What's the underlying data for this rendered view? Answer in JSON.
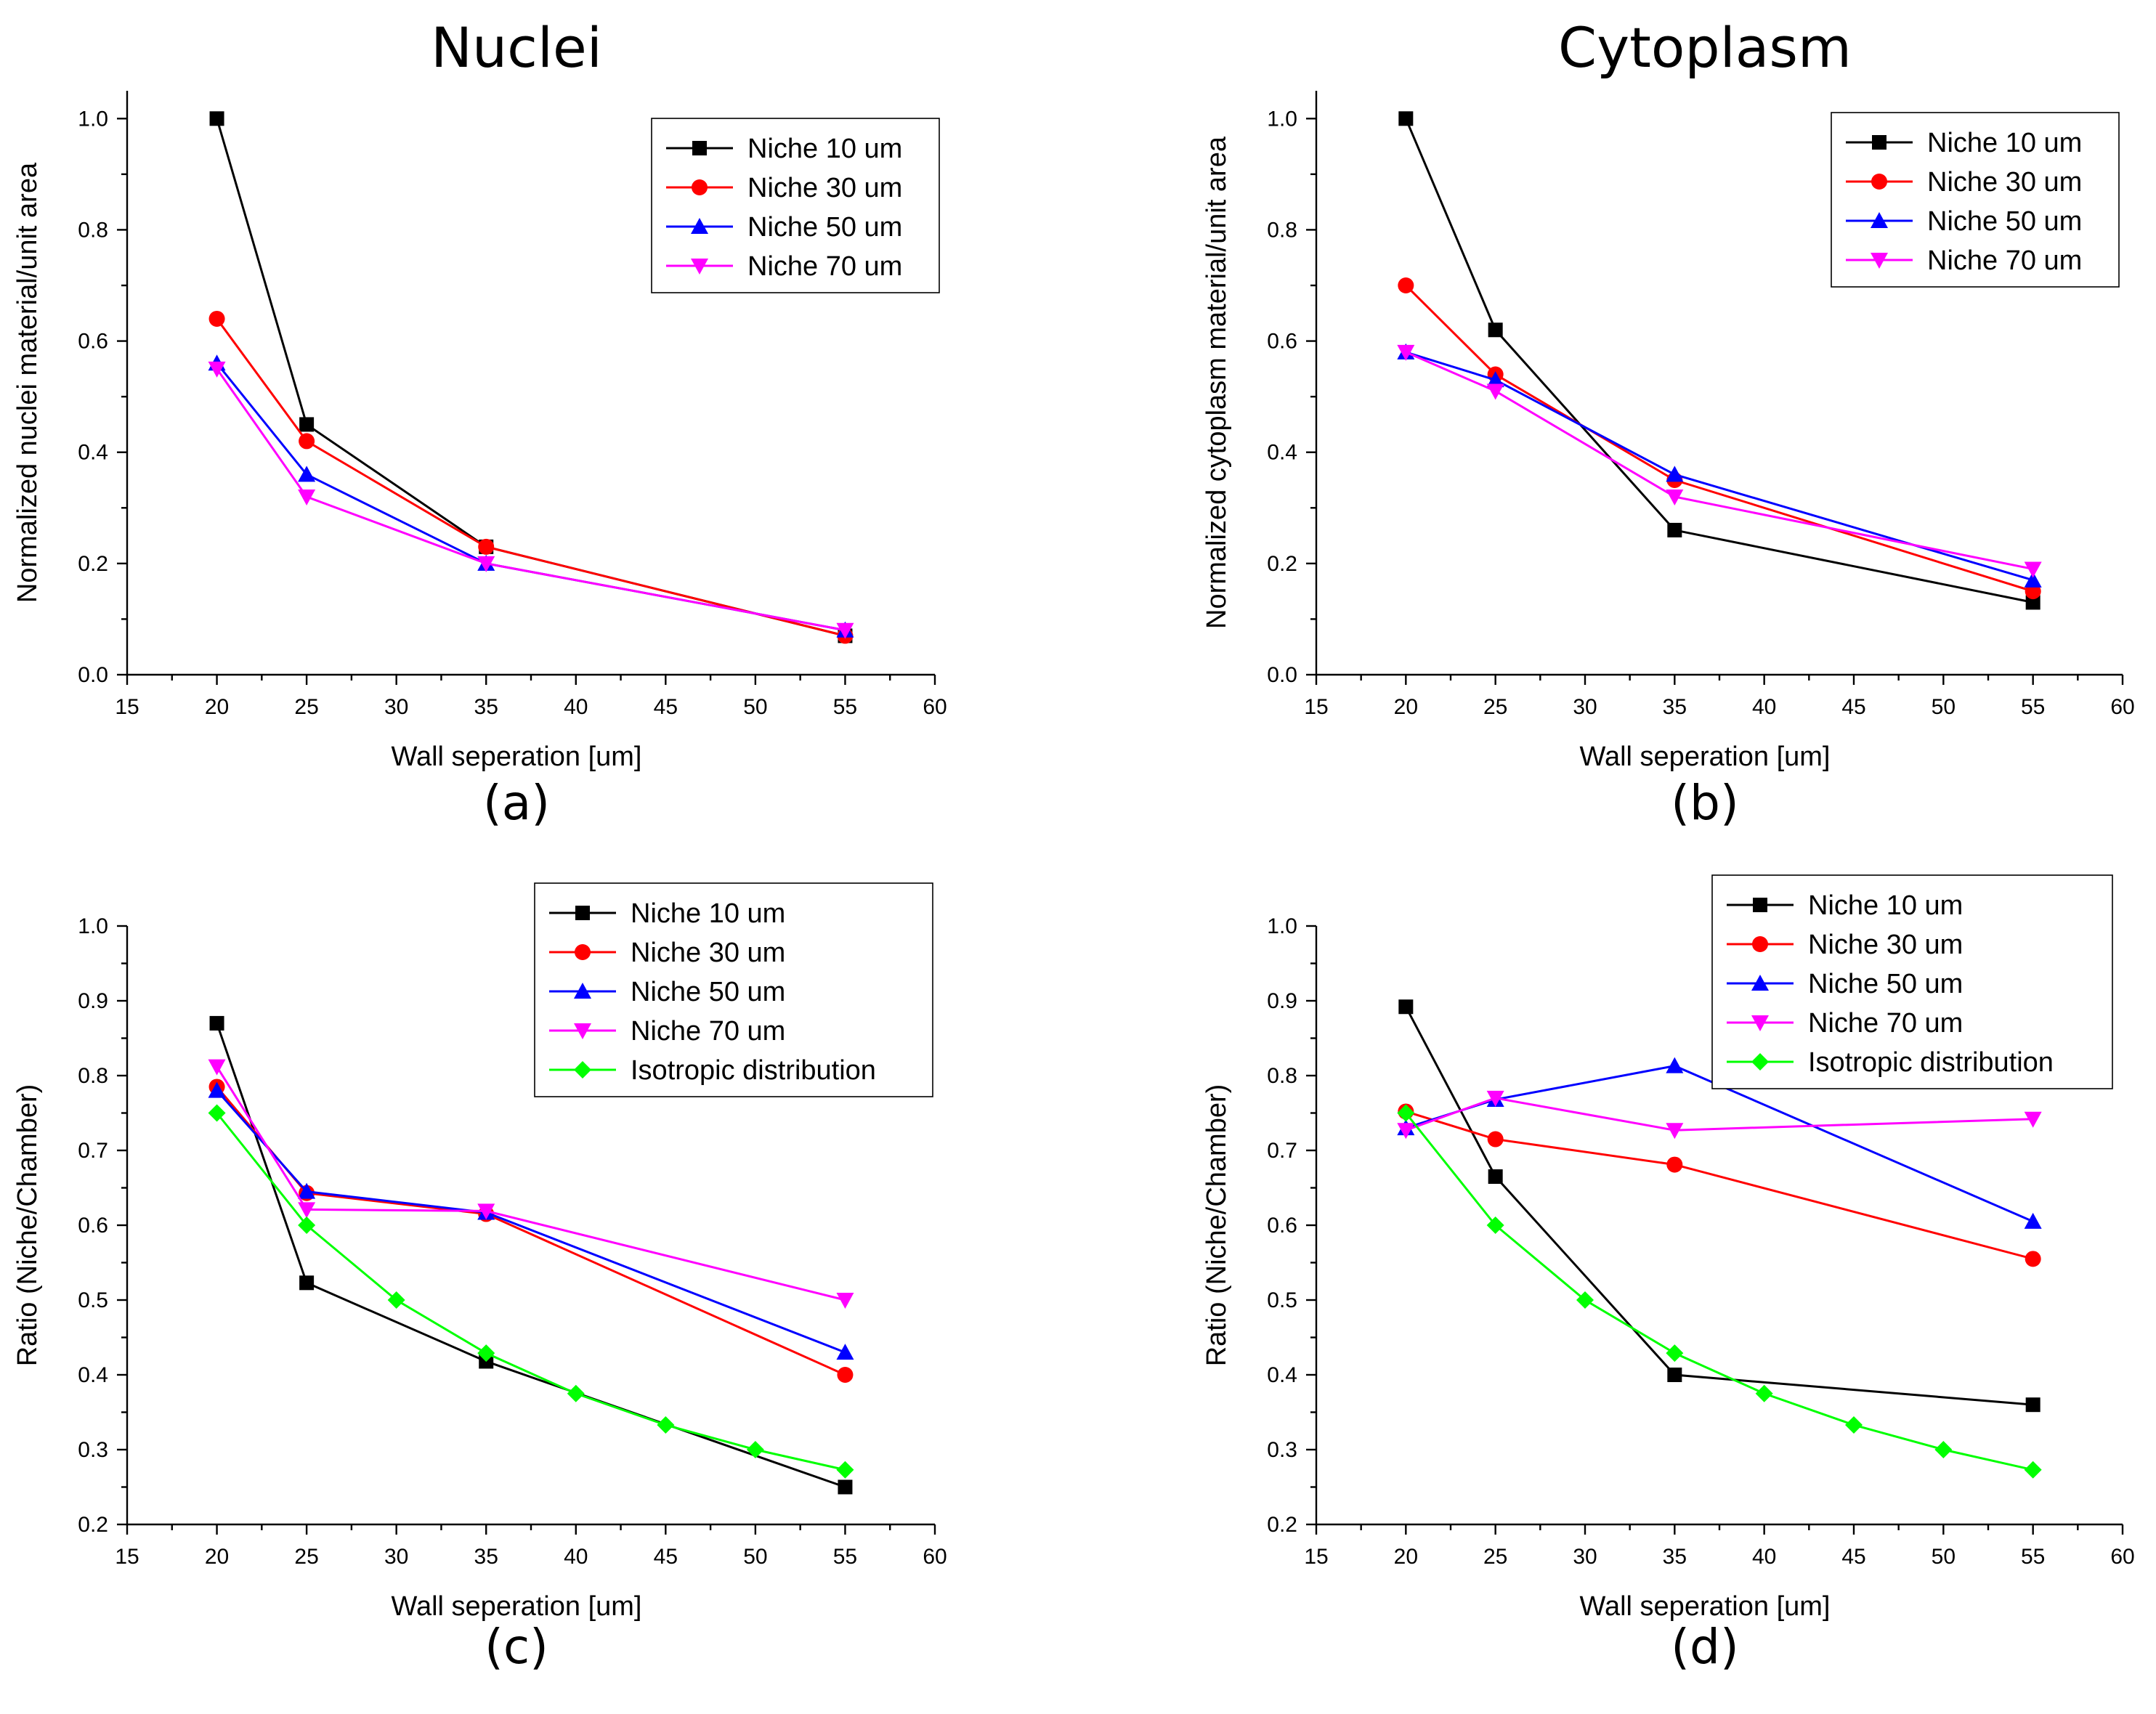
{
  "colors": {
    "Niche 10 um": "#000000",
    "Niche 30 um": "#ff0000",
    "Niche 50 um": "#0000ff",
    "Niche 70 um": "#ff00ff",
    "Isotropic distribution": "#00ff00"
  },
  "markers": {
    "Niche 10 um": "square",
    "Niche 30 um": "circle",
    "Niche 50 um": "triangle-up",
    "Niche 70 um": "triangle-down",
    "Isotropic distribution": "diamond"
  },
  "chart_data": [
    {
      "type": "line",
      "title": "Nuclei",
      "panel_label": "(a)",
      "xlabel": "Wall seperation [um]",
      "ylabel": "Normalized nuclei material/unit area",
      "xlim": [
        15,
        60
      ],
      "ylim": [
        0,
        1.05
      ],
      "xticks": [
        15,
        20,
        25,
        30,
        35,
        40,
        45,
        50,
        55,
        60
      ],
      "xtick_labels": [
        "15",
        "20",
        "25",
        "30",
        "35",
        "40",
        "45",
        "50",
        "55",
        "60"
      ],
      "yticks": [
        0,
        0.2,
        0.4,
        0.6,
        0.8,
        1.0
      ],
      "ytick_labels": [
        "0.0",
        "0.2",
        "0.4",
        "0.6",
        "0.8",
        "1.0"
      ],
      "legend_position": "top-right",
      "series": [
        {
          "name": "Niche 10 um",
          "x": [
            20,
            25,
            35,
            55
          ],
          "values": [
            1.0,
            0.45,
            0.23,
            0.07
          ]
        },
        {
          "name": "Niche 30 um",
          "x": [
            20,
            25,
            35,
            55
          ],
          "values": [
            0.64,
            0.42,
            0.23,
            0.07
          ]
        },
        {
          "name": "Niche 50 um",
          "x": [
            20,
            25,
            35,
            55
          ],
          "values": [
            0.56,
            0.36,
            0.2,
            0.08
          ]
        },
        {
          "name": "Niche 70 um",
          "x": [
            20,
            25,
            35,
            55
          ],
          "values": [
            0.55,
            0.32,
            0.2,
            0.08
          ]
        }
      ]
    },
    {
      "type": "line",
      "title": "Cytoplasm",
      "panel_label": "(b)",
      "xlabel": "Wall seperation [um]",
      "ylabel": "Normalized cytoplasm material/unit area",
      "xlim": [
        15,
        60
      ],
      "ylim": [
        0,
        1.05
      ],
      "xticks": [
        15,
        20,
        25,
        30,
        35,
        40,
        45,
        50,
        55,
        60
      ],
      "xtick_labels": [
        "15",
        "20",
        "25",
        "30",
        "35",
        "40",
        "45",
        "50",
        "55",
        "60"
      ],
      "yticks": [
        0,
        0.2,
        0.4,
        0.6,
        0.8,
        1.0
      ],
      "ytick_labels": [
        "0.0",
        "0.2",
        "0.4",
        "0.6",
        "0.8",
        "1.0"
      ],
      "legend_position": "top-right",
      "series": [
        {
          "name": "Niche 10 um",
          "x": [
            20,
            25,
            35,
            55
          ],
          "values": [
            1.0,
            0.62,
            0.26,
            0.13
          ]
        },
        {
          "name": "Niche 30 um",
          "x": [
            20,
            25,
            35,
            55
          ],
          "values": [
            0.7,
            0.54,
            0.35,
            0.15
          ]
        },
        {
          "name": "Niche 50 um",
          "x": [
            20,
            25,
            35,
            55
          ],
          "values": [
            0.58,
            0.53,
            0.36,
            0.17
          ]
        },
        {
          "name": "Niche 70 um",
          "x": [
            20,
            25,
            35,
            55
          ],
          "values": [
            0.58,
            0.51,
            0.32,
            0.19
          ]
        }
      ]
    },
    {
      "type": "line",
      "title": "",
      "panel_label": "(c)",
      "xlabel": "Wall seperation [um]",
      "ylabel": "Ratio (Niche/Chamber)",
      "xlim": [
        15,
        60
      ],
      "ylim": [
        0.2,
        1.0
      ],
      "xticks": [
        15,
        20,
        25,
        30,
        35,
        40,
        45,
        50,
        55,
        60
      ],
      "xtick_labels": [
        "15",
        "20",
        "25",
        "30",
        "35",
        "40",
        "45",
        "50",
        "55",
        "60"
      ],
      "yticks": [
        0.2,
        0.3,
        0.4,
        0.5,
        0.6,
        0.7,
        0.8,
        0.9,
        1.0
      ],
      "ytick_labels": [
        "0.2",
        "0.3",
        "0.4",
        "0.5",
        "0.6",
        "0.7",
        "0.8",
        "0.9",
        "1.0"
      ],
      "legend_position": "top-right",
      "series": [
        {
          "name": "Niche 10 um",
          "x": [
            20,
            25,
            35,
            55
          ],
          "values": [
            0.87,
            0.523,
            0.418,
            0.25
          ]
        },
        {
          "name": "Niche 30 um",
          "x": [
            20,
            25,
            35,
            55
          ],
          "values": [
            0.785,
            0.643,
            0.615,
            0.4
          ]
        },
        {
          "name": "Niche 50 um",
          "x": [
            20,
            25,
            35,
            55
          ],
          "values": [
            0.78,
            0.645,
            0.617,
            0.43
          ]
        },
        {
          "name": "Niche 70 um",
          "x": [
            20,
            25,
            35,
            55
          ],
          "values": [
            0.812,
            0.621,
            0.619,
            0.5
          ]
        },
        {
          "name": "Isotropic distribution",
          "x": [
            20,
            25,
            30,
            35,
            40,
            45,
            50,
            55
          ],
          "values": [
            0.75,
            0.6,
            0.5,
            0.429,
            0.375,
            0.333,
            0.3,
            0.273
          ]
        }
      ]
    },
    {
      "type": "line",
      "title": "",
      "panel_label": "(d)",
      "xlabel": "Wall seperation [um]",
      "ylabel": "Ratio (Niche/Chamber)",
      "xlim": [
        15,
        60
      ],
      "ylim": [
        0.2,
        1.0
      ],
      "xticks": [
        15,
        20,
        25,
        30,
        35,
        40,
        45,
        50,
        55,
        60
      ],
      "xtick_labels": [
        "15",
        "20",
        "25",
        "30",
        "35",
        "40",
        "45",
        "50",
        "55",
        "60"
      ],
      "yticks": [
        0.2,
        0.3,
        0.4,
        0.5,
        0.6,
        0.7,
        0.8,
        0.9,
        1.0
      ],
      "ytick_labels": [
        "0.2",
        "0.3",
        "0.4",
        "0.5",
        "0.6",
        "0.7",
        "0.8",
        "0.9",
        "1.0"
      ],
      "legend_position": "top-right",
      "series": [
        {
          "name": "Niche 10 um",
          "x": [
            20,
            25,
            35,
            55
          ],
          "values": [
            0.892,
            0.665,
            0.4,
            0.36
          ]
        },
        {
          "name": "Niche 30 um",
          "x": [
            20,
            25,
            35,
            55
          ],
          "values": [
            0.752,
            0.715,
            0.681,
            0.555
          ]
        },
        {
          "name": "Niche 50 um",
          "x": [
            20,
            25,
            35,
            55
          ],
          "values": [
            0.73,
            0.768,
            0.813,
            0.605
          ]
        },
        {
          "name": "Niche 70 um",
          "x": [
            20,
            25,
            35,
            55
          ],
          "values": [
            0.727,
            0.77,
            0.727,
            0.742
          ]
        },
        {
          "name": "Isotropic distribution",
          "x": [
            20,
            25,
            30,
            35,
            40,
            45,
            50,
            55
          ],
          "values": [
            0.75,
            0.6,
            0.5,
            0.429,
            0.375,
            0.333,
            0.3,
            0.273
          ]
        }
      ]
    }
  ]
}
